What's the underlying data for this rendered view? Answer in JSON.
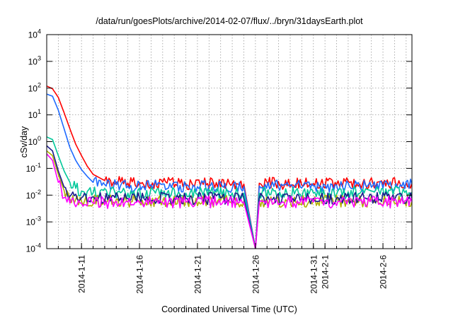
{
  "chart_data": {
    "type": "line",
    "title": "/data/run/goesPlots/archive/2014-02-07/flux/../bryn/31daysEarth.plot",
    "xlabel": "Coordinated Universal Time (UTC)",
    "ylabel": "cSv/day",
    "x_is_date": true,
    "xlim": [
      "2014-01-08T00:00",
      "2014-02-08T12:00"
    ],
    "y_scale": "log",
    "ylim": [
      0.0001,
      10000
    ],
    "y_ticks": [
      {
        "value": 0.0001,
        "base": "10",
        "exp": "-4"
      },
      {
        "value": 0.001,
        "base": "10",
        "exp": "-3"
      },
      {
        "value": 0.01,
        "base": "10",
        "exp": "-2"
      },
      {
        "value": 0.1,
        "base": "10",
        "exp": "-1"
      },
      {
        "value": 1,
        "base": "10",
        "exp": "0"
      },
      {
        "value": 10,
        "base": "10",
        "exp": "1"
      },
      {
        "value": 100,
        "base": "10",
        "exp": "2"
      },
      {
        "value": 1000,
        "base": "10",
        "exp": "3"
      },
      {
        "value": 10000,
        "base": "10",
        "exp": "4"
      }
    ],
    "x_ticks": [
      {
        "date": "2014-01-11",
        "label": "2014-1-11"
      },
      {
        "date": "2014-01-16",
        "label": "2014-1-16"
      },
      {
        "date": "2014-01-21",
        "label": "2014-1-21"
      },
      {
        "date": "2014-01-26",
        "label": "2014-1-26"
      },
      {
        "date": "2014-01-31",
        "label": "2014-1-31"
      },
      {
        "date": "2014-02-01",
        "label": "2014-2-1"
      },
      {
        "date": "2014-02-06",
        "label": "2014-2-6"
      }
    ],
    "grid": true,
    "legend": "none",
    "series": [
      {
        "color": "#ff0000",
        "points": [
          [
            "2014-01-08T00:00",
            120
          ],
          [
            "2014-01-08T12:00",
            95
          ],
          [
            "2014-01-09T00:00",
            45
          ],
          [
            "2014-01-09T12:00",
            12
          ],
          [
            "2014-01-10T00:00",
            3
          ],
          [
            "2014-01-10T12:00",
            0.8
          ],
          [
            "2014-01-11T00:00",
            0.3
          ],
          [
            "2014-01-11T12:00",
            0.12
          ],
          [
            "2014-01-12T00:00",
            0.06
          ],
          [
            "2014-01-13T00:00",
            0.035
          ],
          [
            "2014-01-15T00:00",
            0.028
          ],
          [
            "2014-01-20T00:00",
            0.027
          ],
          [
            "2014-01-25T00:00",
            0.026
          ],
          [
            "2014-01-26T00:00",
            0.0001
          ],
          [
            "2014-01-26T08:00",
            0.028
          ],
          [
            "2014-01-31T00:00",
            0.027
          ],
          [
            "2014-02-04T00:00",
            0.026
          ],
          [
            "2014-02-08T12:00",
            0.03
          ]
        ]
      },
      {
        "color": "#1e6aff",
        "points": [
          [
            "2014-01-08T00:00",
            60
          ],
          [
            "2014-01-08T12:00",
            50
          ],
          [
            "2014-01-09T00:00",
            15
          ],
          [
            "2014-01-09T12:00",
            3
          ],
          [
            "2014-01-10T00:00",
            0.6
          ],
          [
            "2014-01-10T12:00",
            0.2
          ],
          [
            "2014-01-11T00:00",
            0.09
          ],
          [
            "2014-01-11T12:00",
            0.05
          ],
          [
            "2014-01-12T00:00",
            0.03
          ],
          [
            "2014-01-13T00:00",
            0.025
          ],
          [
            "2014-01-15T00:00",
            0.022
          ],
          [
            "2014-01-20T00:00",
            0.022
          ],
          [
            "2014-01-25T00:00",
            0.021
          ],
          [
            "2014-01-26T00:00",
            0.0001
          ],
          [
            "2014-01-26T08:00",
            0.022
          ],
          [
            "2014-01-31T00:00",
            0.022
          ],
          [
            "2014-02-04T00:00",
            0.021
          ],
          [
            "2014-02-08T12:00",
            0.025
          ]
        ]
      },
      {
        "color": "#00c89a",
        "points": [
          [
            "2014-01-08T00:00",
            1.5
          ],
          [
            "2014-01-08T12:00",
            1.2
          ],
          [
            "2014-01-09T00:00",
            0.3
          ],
          [
            "2014-01-09T12:00",
            0.08
          ],
          [
            "2014-01-10T00:00",
            0.03
          ],
          [
            "2014-01-10T12:00",
            0.018
          ],
          [
            "2014-01-11T00:00",
            0.014
          ],
          [
            "2014-01-12T00:00",
            0.012
          ],
          [
            "2014-01-15T00:00",
            0.012
          ],
          [
            "2014-01-20T00:00",
            0.012
          ],
          [
            "2014-01-25T00:00",
            0.012
          ],
          [
            "2014-01-26T00:00",
            0.0001
          ],
          [
            "2014-01-26T08:00",
            0.012
          ],
          [
            "2014-01-31T00:00",
            0.012
          ],
          [
            "2014-02-08T12:00",
            0.013
          ]
        ]
      },
      {
        "color": "#b0b000",
        "points": [
          [
            "2014-01-08T00:00",
            0.45
          ],
          [
            "2014-01-08T12:00",
            0.3
          ],
          [
            "2014-01-09T00:00",
            0.06
          ],
          [
            "2014-01-09T12:00",
            0.015
          ],
          [
            "2014-01-10T00:00",
            0.007
          ],
          [
            "2014-01-11T00:00",
            0.006
          ],
          [
            "2014-01-15T00:00",
            0.006
          ],
          [
            "2014-01-20T00:00",
            0.006
          ],
          [
            "2014-01-25T00:00",
            0.006
          ],
          [
            "2014-01-26T00:00",
            0.0001
          ],
          [
            "2014-01-26T08:00",
            0.006
          ],
          [
            "2014-01-31T00:00",
            0.006
          ],
          [
            "2014-02-08T12:00",
            0.006
          ]
        ]
      },
      {
        "color": "#1a1a8c",
        "points": [
          [
            "2014-01-08T00:00",
            0.7
          ],
          [
            "2014-01-08T12:00",
            0.45
          ],
          [
            "2014-01-09T00:00",
            0.08
          ],
          [
            "2014-01-09T12:00",
            0.02
          ],
          [
            "2014-01-10T00:00",
            0.009
          ],
          [
            "2014-01-11T00:00",
            0.008
          ],
          [
            "2014-01-15T00:00",
            0.0075
          ],
          [
            "2014-01-20T00:00",
            0.0075
          ],
          [
            "2014-01-25T00:00",
            0.0075
          ],
          [
            "2014-01-26T00:00",
            0.0001
          ],
          [
            "2014-01-26T08:00",
            0.0075
          ],
          [
            "2014-01-31T00:00",
            0.0075
          ],
          [
            "2014-02-08T12:00",
            0.0078
          ]
        ]
      },
      {
        "color": "#ff00ff",
        "points": [
          [
            "2014-01-08T00:00",
            0.35
          ],
          [
            "2014-01-08T12:00",
            0.2
          ],
          [
            "2014-01-09T00:00",
            0.03
          ],
          [
            "2014-01-09T12:00",
            0.008
          ],
          [
            "2014-01-10T00:00",
            0.005
          ],
          [
            "2014-01-11T00:00",
            0.005
          ],
          [
            "2014-01-15T00:00",
            0.0055
          ],
          [
            "2014-01-20T00:00",
            0.0055
          ],
          [
            "2014-01-25T00:00",
            0.0055
          ],
          [
            "2014-01-26T00:00",
            0.0001
          ],
          [
            "2014-01-26T08:00",
            0.0055
          ],
          [
            "2014-01-31T00:00",
            0.0055
          ],
          [
            "2014-02-08T12:00",
            0.0055
          ]
        ]
      }
    ]
  }
}
